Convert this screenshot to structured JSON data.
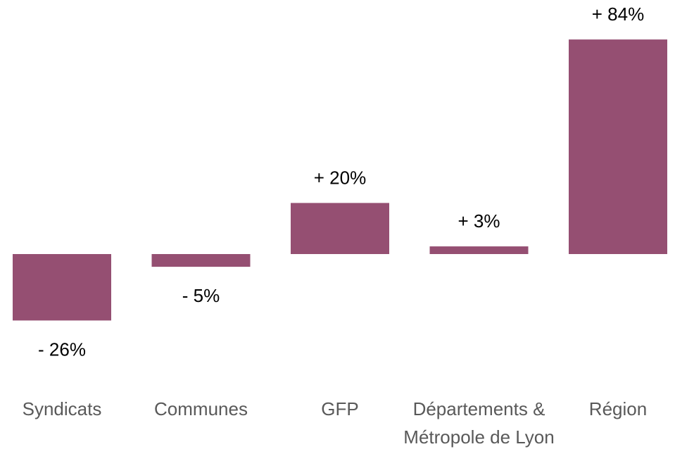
{
  "chart_data": {
    "type": "bar",
    "categories": [
      [
        "Syndicats"
      ],
      [
        "Communes"
      ],
      [
        "GFP"
      ],
      [
        "Départements &",
        "Métropole de Lyon"
      ],
      [
        "Région"
      ]
    ],
    "values": [
      -26,
      -5,
      20,
      3,
      84
    ],
    "data_labels": [
      "- 26%",
      "- 5%",
      "+ 20%",
      "+ 3%",
      "+ 84%"
    ],
    "unit": "%",
    "bar_color": "#954f72",
    "ylim": [
      -30,
      90
    ],
    "grid": false,
    "axes_visible": false,
    "legend": "none"
  }
}
